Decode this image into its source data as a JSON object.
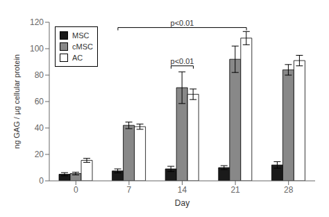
{
  "chart_data": {
    "type": "bar",
    "xlabel": "Day",
    "ylabel": "ng GAG / µg cellular protein",
    "categories": [
      "0",
      "7",
      "14",
      "21",
      "28"
    ],
    "series": [
      {
        "name": "MSC",
        "color": "#1a1a1a",
        "values": [
          5.0,
          7.5,
          9.0,
          10.0,
          12.0
        ],
        "errors": [
          1.2,
          1.5,
          2.0,
          1.5,
          2.5
        ]
      },
      {
        "name": "cMSC",
        "color": "#888888",
        "values": [
          5.5,
          42.0,
          70.5,
          92.0,
          84.0
        ],
        "errors": [
          1.0,
          2.5,
          12.0,
          10.0,
          4.0
        ]
      },
      {
        "name": "AC",
        "color": "#ffffff",
        "values": [
          15.5,
          41.0,
          65.5,
          108.0,
          91.0
        ],
        "errors": [
          1.5,
          2.0,
          4.0,
          5.0,
          4.0
        ]
      }
    ],
    "ylim": [
      0,
      120
    ],
    "yticks": [
      0,
      20,
      40,
      60,
      80,
      100,
      120
    ],
    "grid": false,
    "legend": "upper left",
    "annotations": [
      {
        "text": "p<0.01",
        "x": [
          "7",
          "21"
        ],
        "y": 116
      },
      {
        "text": "p<0.01",
        "x": [
          "14",
          "14"
        ],
        "y": 87
      }
    ]
  }
}
